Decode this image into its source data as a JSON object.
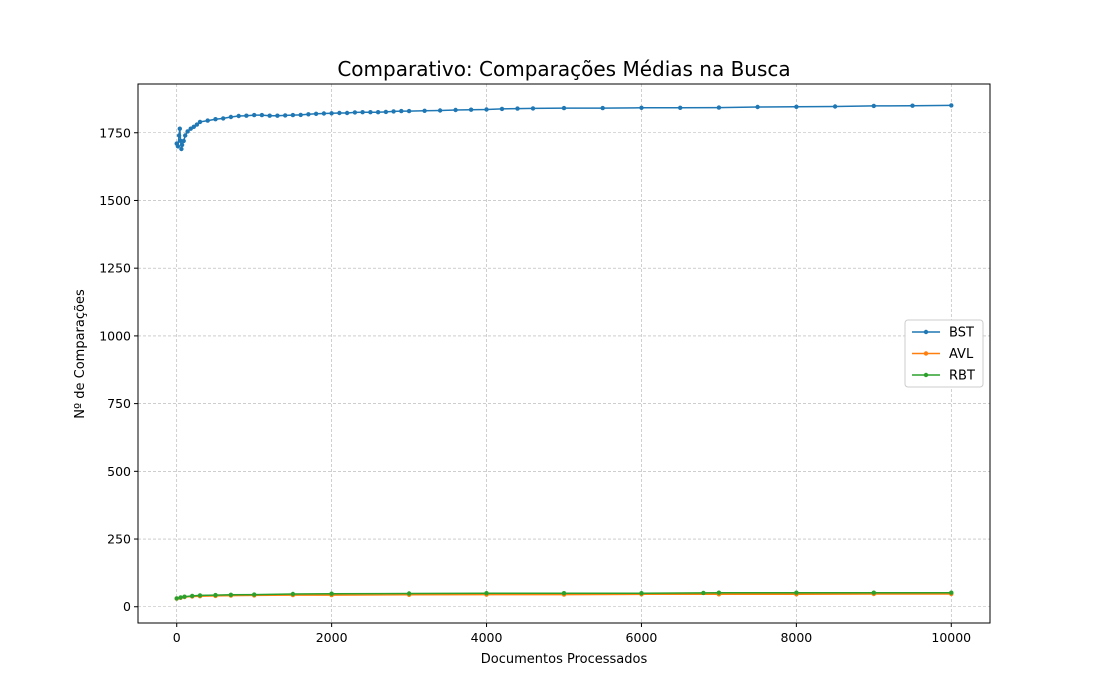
{
  "chart_data": {
    "type": "line",
    "title": "Comparativo: Comparações Médias na Busca",
    "xlabel": "Documentos Processados",
    "ylabel": "Nº de Comparações",
    "xlim": [
      -500,
      10500
    ],
    "ylim": [
      -60,
      1930
    ],
    "xticks": [
      0,
      2000,
      4000,
      6000,
      8000,
      10000
    ],
    "yticks": [
      0,
      250,
      500,
      750,
      1000,
      1250,
      1500,
      1750
    ],
    "grid": true,
    "legend_position": "center-right",
    "series": [
      {
        "name": "BST",
        "color": "#1f77b4",
        "points": [
          [
            0,
            1710
          ],
          [
            15,
            1700
          ],
          [
            30,
            1740
          ],
          [
            40,
            1765
          ],
          [
            50,
            1720
          ],
          [
            60,
            1690
          ],
          [
            70,
            1705
          ],
          [
            90,
            1720
          ],
          [
            110,
            1740
          ],
          [
            140,
            1755
          ],
          [
            180,
            1765
          ],
          [
            220,
            1772
          ],
          [
            260,
            1780
          ],
          [
            300,
            1790
          ],
          [
            400,
            1795
          ],
          [
            500,
            1800
          ],
          [
            600,
            1803
          ],
          [
            700,
            1808
          ],
          [
            800,
            1812
          ],
          [
            900,
            1813
          ],
          [
            1000,
            1815
          ],
          [
            1100,
            1815
          ],
          [
            1200,
            1813
          ],
          [
            1300,
            1813
          ],
          [
            1400,
            1814
          ],
          [
            1500,
            1815
          ],
          [
            1600,
            1816
          ],
          [
            1700,
            1818
          ],
          [
            1800,
            1820
          ],
          [
            1900,
            1821
          ],
          [
            2000,
            1822
          ],
          [
            2100,
            1823
          ],
          [
            2200,
            1823
          ],
          [
            2300,
            1825
          ],
          [
            2400,
            1826
          ],
          [
            2500,
            1826
          ],
          [
            2600,
            1826
          ],
          [
            2700,
            1827
          ],
          [
            2800,
            1829
          ],
          [
            2900,
            1830
          ],
          [
            3000,
            1830
          ],
          [
            3200,
            1831
          ],
          [
            3400,
            1832
          ],
          [
            3600,
            1834
          ],
          [
            3800,
            1835
          ],
          [
            4000,
            1836
          ],
          [
            4200,
            1838
          ],
          [
            4400,
            1839
          ],
          [
            4600,
            1840
          ],
          [
            5000,
            1841
          ],
          [
            5500,
            1841
          ],
          [
            6000,
            1842
          ],
          [
            6500,
            1842
          ],
          [
            7000,
            1843
          ],
          [
            7500,
            1845
          ],
          [
            8000,
            1846
          ],
          [
            8500,
            1847
          ],
          [
            9000,
            1849
          ],
          [
            9500,
            1850
          ],
          [
            10000,
            1851
          ]
        ]
      },
      {
        "name": "AVL",
        "color": "#ff7f0e",
        "points": [
          [
            0,
            30
          ],
          [
            50,
            33
          ],
          [
            100,
            36
          ],
          [
            200,
            38
          ],
          [
            300,
            39
          ],
          [
            500,
            40
          ],
          [
            700,
            41
          ],
          [
            1000,
            42
          ],
          [
            1500,
            43
          ],
          [
            2000,
            43
          ],
          [
            3000,
            44
          ],
          [
            4000,
            45
          ],
          [
            5000,
            45
          ],
          [
            6000,
            46
          ],
          [
            7000,
            46
          ],
          [
            8000,
            46
          ],
          [
            9000,
            47
          ],
          [
            10000,
            47
          ]
        ]
      },
      {
        "name": "RBT",
        "color": "#2ca02c",
        "points": [
          [
            0,
            31
          ],
          [
            50,
            34
          ],
          [
            100,
            37
          ],
          [
            200,
            40
          ],
          [
            300,
            42
          ],
          [
            500,
            43
          ],
          [
            700,
            44
          ],
          [
            1000,
            45
          ],
          [
            1500,
            47
          ],
          [
            2000,
            48
          ],
          [
            3000,
            49
          ],
          [
            4000,
            50
          ],
          [
            5000,
            50
          ],
          [
            6000,
            50
          ],
          [
            6800,
            51
          ],
          [
            7000,
            52
          ],
          [
            8000,
            52
          ],
          [
            9000,
            52
          ],
          [
            10000,
            52
          ]
        ]
      }
    ]
  }
}
